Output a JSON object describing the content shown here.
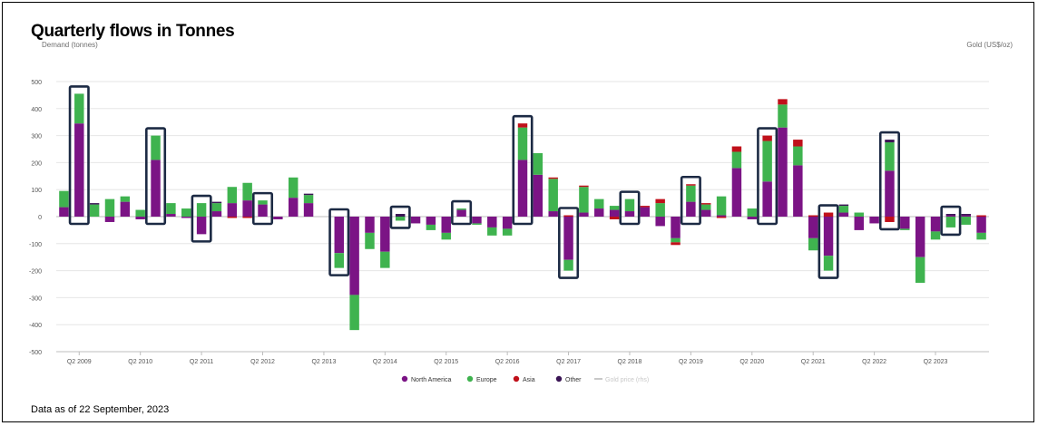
{
  "title": "Quarterly flows in Tonnes",
  "left_axis_label": "Demand (tonnes)",
  "right_axis_label": "Gold (US$/oz)",
  "footer": "Data as of 22 September, 2023",
  "colors": {
    "north_america": "#7b1485",
    "europe": "#3fb34f",
    "asia": "#c0101a",
    "other": "#3b1555",
    "gold_price": "#c8c8c8",
    "highlight": "#1c2a44"
  },
  "chart_data": {
    "type": "bar",
    "stacked": true,
    "ylim": [
      -500,
      500
    ],
    "y_ticks": [
      500,
      400,
      300,
      200,
      100,
      0,
      -100,
      -200,
      -300,
      -400,
      -500
    ],
    "x_tick_labels": [
      {
        "label": "Q2 2009",
        "index": 1
      },
      {
        "label": "Q2 2010",
        "index": 5
      },
      {
        "label": "Q2 2011",
        "index": 9
      },
      {
        "label": "Q2 2012",
        "index": 13
      },
      {
        "label": "Q2 2013",
        "index": 17
      },
      {
        "label": "Q2 2014",
        "index": 21
      },
      {
        "label": "Q2 2015",
        "index": 25
      },
      {
        "label": "Q2 2016",
        "index": 29
      },
      {
        "label": "Q2 2017",
        "index": 33
      },
      {
        "label": "Q2 2018",
        "index": 37
      },
      {
        "label": "Q2 2019",
        "index": 41
      },
      {
        "label": "Q2 2020",
        "index": 45
      },
      {
        "label": "Q2 2021",
        "index": 49
      },
      {
        "label": "Q2 2022",
        "index": 53
      },
      {
        "label": "Q2 2023",
        "index": 57
      }
    ],
    "legend": [
      {
        "name": "North America",
        "key": "north_america"
      },
      {
        "name": "Europe",
        "key": "europe"
      },
      {
        "name": "Asia",
        "key": "asia"
      },
      {
        "name": "Other",
        "key": "other"
      },
      {
        "name": "Gold price (rhs)",
        "key": "gold_price"
      }
    ],
    "series_order": [
      "north_america",
      "europe",
      "asia",
      "other"
    ],
    "bars": [
      {
        "north_america": 35,
        "europe": 60,
        "asia": 0,
        "other": 0
      },
      {
        "north_america": 345,
        "europe": 110,
        "asia": 0,
        "other": 0
      },
      {
        "north_america": 0,
        "europe": 45,
        "asia": 0,
        "other": 5
      },
      {
        "north_america": -20,
        "europe": 65,
        "asia": 0,
        "other": 0
      },
      {
        "north_america": 55,
        "europe": 20,
        "asia": 0,
        "other": 0
      },
      {
        "north_america": -10,
        "europe": 25,
        "asia": 0,
        "other": 0
      },
      {
        "north_america": 210,
        "europe": 90,
        "asia": 0,
        "other": 0
      },
      {
        "north_america": 10,
        "europe": 40,
        "asia": 0,
        "other": 0
      },
      {
        "north_america": -5,
        "europe": 30,
        "asia": 0,
        "other": 0
      },
      {
        "north_america": -65,
        "europe": 50,
        "asia": 0,
        "other": 0
      },
      {
        "north_america": 20,
        "europe": 30,
        "asia": 0,
        "other": 5
      },
      {
        "north_america": 50,
        "europe": 60,
        "asia": -5,
        "other": 0
      },
      {
        "north_america": 60,
        "europe": 65,
        "asia": -5,
        "other": 0
      },
      {
        "north_america": 45,
        "europe": 15,
        "asia": 0,
        "other": 0
      },
      {
        "north_america": -10,
        "europe": 0,
        "asia": 0,
        "other": 0
      },
      {
        "north_america": 70,
        "europe": 75,
        "asia": 0,
        "other": 0
      },
      {
        "north_america": 50,
        "europe": 30,
        "asia": 0,
        "other": 5
      },
      {
        "north_america": 0,
        "europe": 0,
        "asia": 0,
        "other": 0
      },
      {
        "north_america": -135,
        "europe": -55,
        "asia": 0,
        "other": 0
      },
      {
        "north_america": -290,
        "europe": -130,
        "asia": 0,
        "other": 0
      },
      {
        "north_america": -60,
        "europe": -60,
        "asia": 0,
        "other": 0
      },
      {
        "north_america": -130,
        "europe": -60,
        "asia": 0,
        "other": 0
      },
      {
        "north_america": 0,
        "europe": -15,
        "asia": 0,
        "other": 10
      },
      {
        "north_america": -25,
        "europe": 0,
        "asia": 0,
        "other": 0
      },
      {
        "north_america": -30,
        "europe": -20,
        "asia": 0,
        "other": 0
      },
      {
        "north_america": -60,
        "europe": -25,
        "asia": 0,
        "other": 0
      },
      {
        "north_america": 25,
        "europe": 5,
        "asia": 0,
        "other": 0
      },
      {
        "north_america": -25,
        "europe": -5,
        "asia": 0,
        "other": 0
      },
      {
        "north_america": -40,
        "europe": -30,
        "asia": 0,
        "other": 0
      },
      {
        "north_america": -45,
        "europe": -25,
        "asia": 0,
        "other": 0
      },
      {
        "north_america": 210,
        "europe": 120,
        "asia": 15,
        "other": 0
      },
      {
        "north_america": 155,
        "europe": 80,
        "asia": 0,
        "other": 0
      },
      {
        "north_america": 20,
        "europe": 120,
        "asia": 5,
        "other": 0
      },
      {
        "north_america": -160,
        "europe": -40,
        "asia": 5,
        "other": 0
      },
      {
        "north_america": 15,
        "europe": 95,
        "asia": 5,
        "other": 0
      },
      {
        "north_america": 30,
        "europe": 35,
        "asia": 0,
        "other": 0
      },
      {
        "north_america": 25,
        "europe": 15,
        "asia": -10,
        "other": 0
      },
      {
        "north_america": 20,
        "europe": 45,
        "asia": 0,
        "other": 0
      },
      {
        "north_america": 35,
        "europe": 0,
        "asia": 5,
        "other": 0
      },
      {
        "north_america": -35,
        "europe": 50,
        "asia": 15,
        "other": 0
      },
      {
        "north_america": -80,
        "europe": -15,
        "asia": -10,
        "other": 0
      },
      {
        "north_america": 55,
        "europe": 60,
        "asia": 5,
        "other": 0
      },
      {
        "north_america": 25,
        "europe": 20,
        "asia": 5,
        "other": 0
      },
      {
        "north_america": 5,
        "europe": 70,
        "asia": -5,
        "other": 0
      },
      {
        "north_america": 180,
        "europe": 60,
        "asia": 20,
        "other": 0
      },
      {
        "north_america": -10,
        "europe": 30,
        "asia": 0,
        "other": 0
      },
      {
        "north_america": 130,
        "europe": 150,
        "asia": 20,
        "other": 0
      },
      {
        "north_america": 330,
        "europe": 85,
        "asia": 20,
        "other": 0
      },
      {
        "north_america": 190,
        "europe": 70,
        "asia": 25,
        "other": 0
      },
      {
        "north_america": -80,
        "europe": -45,
        "asia": 5,
        "other": 0
      },
      {
        "north_america": -145,
        "europe": -55,
        "asia": 15,
        "other": 0
      },
      {
        "north_america": 15,
        "europe": 25,
        "asia": 0,
        "other": 5
      },
      {
        "north_america": -50,
        "europe": 15,
        "asia": 0,
        "other": 0
      },
      {
        "north_america": -25,
        "europe": 0,
        "asia": 0,
        "other": 0
      },
      {
        "north_america": 170,
        "europe": 105,
        "asia": -20,
        "other": 10
      },
      {
        "north_america": -45,
        "europe": -5,
        "asia": 0,
        "other": 0
      },
      {
        "north_america": -150,
        "europe": -95,
        "asia": 0,
        "other": 0
      },
      {
        "north_america": -55,
        "europe": -30,
        "asia": 0,
        "other": 0
      },
      {
        "north_america": 5,
        "europe": -40,
        "asia": 0,
        "other": 5
      },
      {
        "north_america": 5,
        "europe": -30,
        "asia": 0,
        "other": 5
      },
      {
        "north_america": -60,
        "europe": -25,
        "asia": 5,
        "other": 0
      }
    ],
    "highlighted_bars": [
      1,
      6,
      9,
      13,
      18,
      22,
      26,
      30,
      33,
      37,
      41,
      46,
      50,
      54,
      58
    ]
  }
}
